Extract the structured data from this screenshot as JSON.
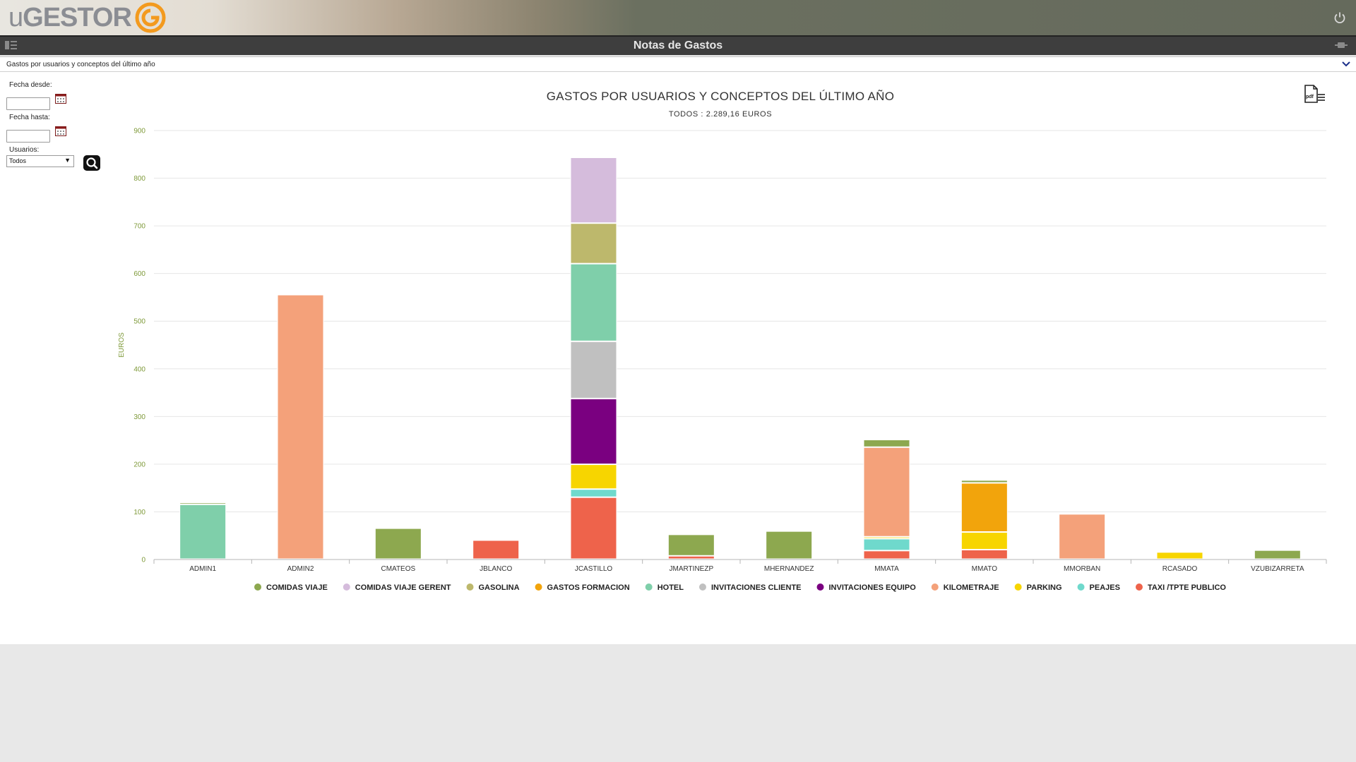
{
  "header": {
    "logo_prefix": "u",
    "logo_main": "GESTOR",
    "window_title": "Notas de Gastos"
  },
  "subbar": {
    "label": "Gastos por usuarios y conceptos del último año"
  },
  "filters": {
    "fecha_desde_label": "Fecha desde:",
    "fecha_desde_value": "",
    "fecha_hasta_label": "Fecha hasta:",
    "fecha_hasta_value": "",
    "usuarios_label": "Usuarios:",
    "usuarios_value": "Todos"
  },
  "colors": {
    "COMIDAS VIAJE": "#8da84f",
    "COMIDAS VIAJE GERENT": "#d5bcdc",
    "GASOLINA": "#bdb86c",
    "GASTOS FORMACION": "#f2a40c",
    "HOTEL": "#7fcfaa",
    "INVITACIONES CLIENTE": "#c0c0c0",
    "INVITACIONES EQUIPO": "#7a0080",
    "KILOMETRAJE": "#f4a17a",
    "PARKING": "#f7d500",
    "PEAJES": "#6fd9cc",
    "TAXI /TPTE PUBLICO": "#ee634b"
  },
  "chart_data": {
    "type": "bar",
    "stacked": true,
    "title": "GASTOS POR USUARIOS Y CONCEPTOS DEL ÚLTIMO AÑO",
    "subtitle": "TODOS : 2.289,16 EUROS",
    "ylabel": "EUROS",
    "xlabel": "",
    "ylim": [
      0,
      900
    ],
    "yticks": [
      0,
      100,
      200,
      300,
      400,
      500,
      600,
      700,
      800,
      900
    ],
    "grid": true,
    "legend_position": "bottom",
    "categories": [
      "ADMIN1",
      "ADMIN2",
      "CMATEOS",
      "JBLANCO",
      "JCASTILLO",
      "JMARTINEZP",
      "MHERNANDEZ",
      "MMATA",
      "MMATO",
      "MMORBAN",
      "RCASADO",
      "VZUBIZARRETA"
    ],
    "series": [
      {
        "name": "TAXI /TPTE PUBLICO",
        "values": [
          0,
          0,
          0,
          40,
          130,
          7,
          0,
          18,
          20,
          0,
          0,
          0
        ]
      },
      {
        "name": "PEAJES",
        "values": [
          0,
          0,
          0,
          0,
          17,
          0,
          0,
          25,
          0,
          0,
          0,
          0
        ]
      },
      {
        "name": "PARKING",
        "values": [
          0,
          0,
          0,
          0,
          52,
          0,
          0,
          4,
          37,
          0,
          15,
          0
        ]
      },
      {
        "name": "INVITACIONES EQUIPO",
        "values": [
          0,
          0,
          0,
          0,
          138,
          0,
          0,
          0,
          0,
          0,
          0,
          0
        ]
      },
      {
        "name": "INVITACIONES CLIENTE",
        "values": [
          0,
          0,
          0,
          0,
          120,
          0,
          0,
          0,
          0,
          0,
          0,
          0
        ]
      },
      {
        "name": "HOTEL",
        "values": [
          115,
          0,
          0,
          0,
          163,
          0,
          0,
          0,
          0,
          0,
          0,
          0
        ]
      },
      {
        "name": "GASOLINA",
        "values": [
          0,
          0,
          0,
          0,
          85,
          0,
          0,
          0,
          0,
          0,
          0,
          0
        ]
      },
      {
        "name": "COMIDAS VIAJE GERENT",
        "values": [
          0,
          0,
          0,
          0,
          138,
          0,
          0,
          0,
          0,
          0,
          0,
          0
        ]
      },
      {
        "name": "KILOMETRAJE",
        "values": [
          0,
          555,
          0,
          0,
          0,
          0,
          0,
          188,
          0,
          95,
          0,
          0
        ]
      },
      {
        "name": "GASTOS FORMACION",
        "values": [
          0,
          0,
          0,
          0,
          0,
          0,
          0,
          0,
          103,
          0,
          0,
          0
        ]
      },
      {
        "name": "COMIDAS VIAJE",
        "values": [
          4,
          0,
          65,
          0,
          0,
          45,
          59,
          16,
          6,
          0,
          0,
          19
        ]
      }
    ],
    "legend_order": [
      "COMIDAS VIAJE",
      "COMIDAS VIAJE GERENT",
      "GASOLINA",
      "GASTOS FORMACION",
      "HOTEL",
      "INVITACIONES CLIENTE",
      "INVITACIONES EQUIPO",
      "KILOMETRAJE",
      "PARKING",
      "PEAJES",
      "TAXI /TPTE PUBLICO"
    ]
  }
}
